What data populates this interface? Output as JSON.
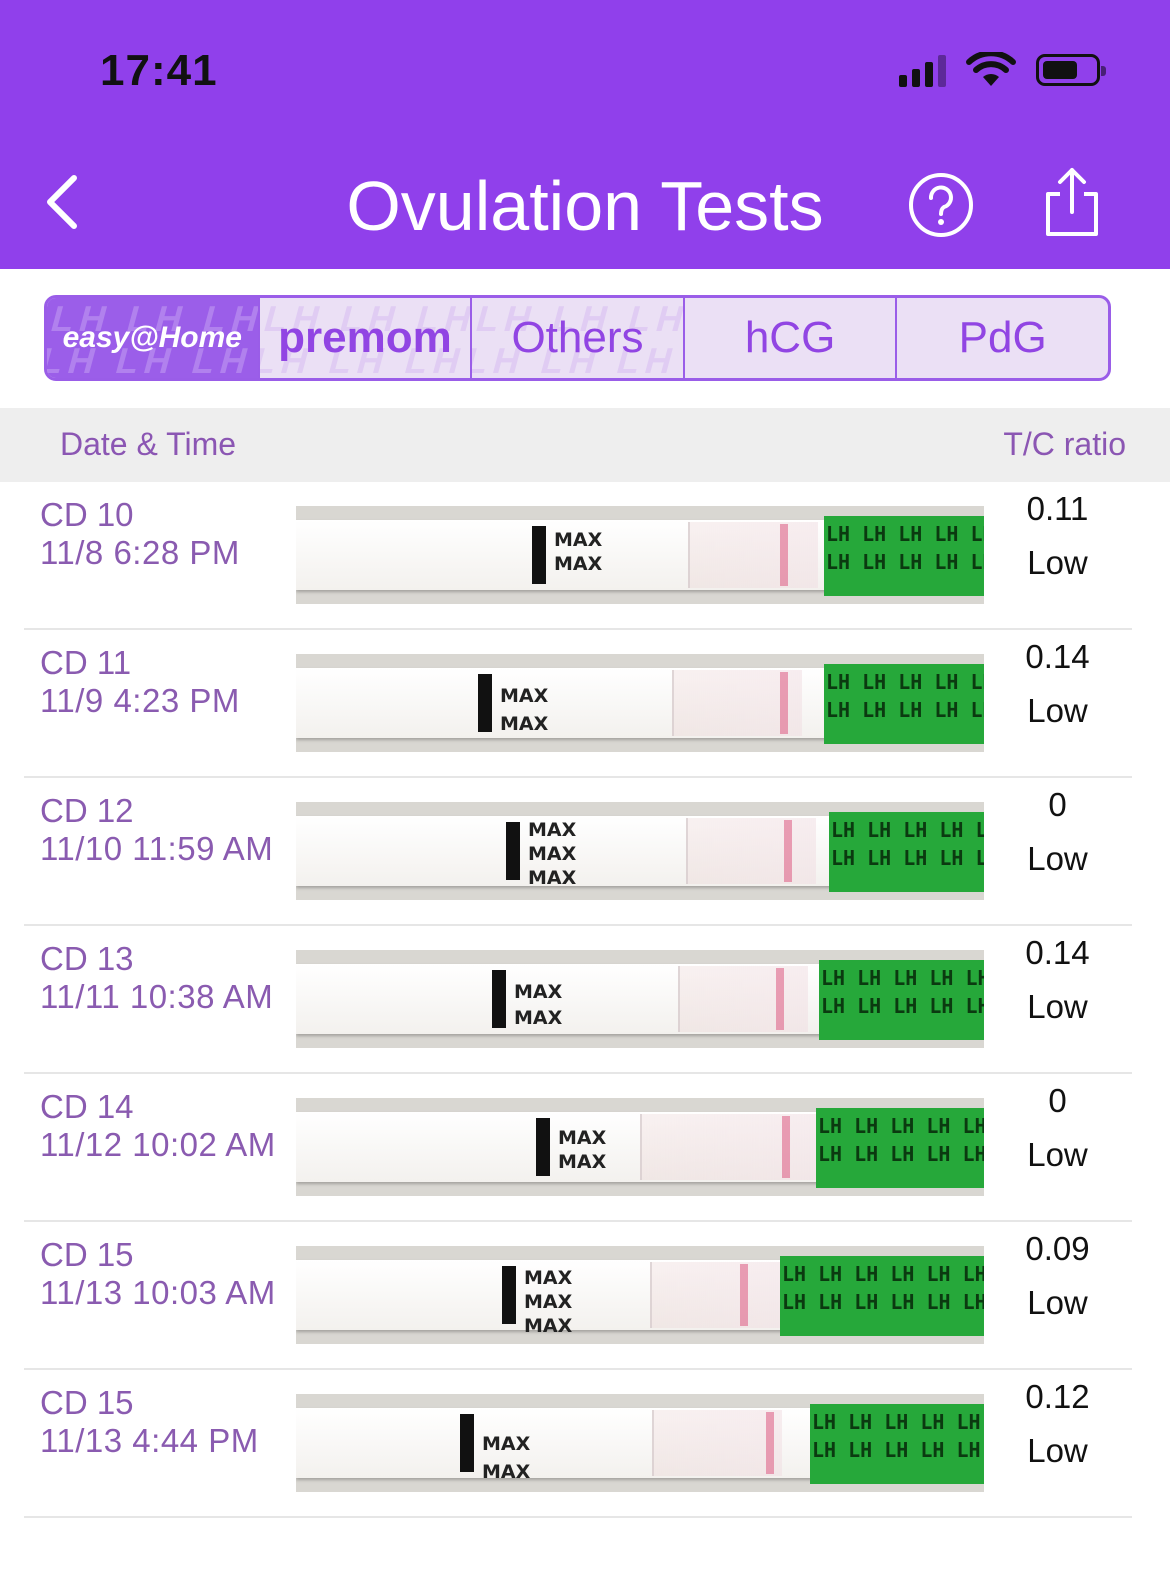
{
  "status_bar": {
    "time": "17:41"
  },
  "header": {
    "title": "Ovulation Tests"
  },
  "tabs": [
    {
      "label": "easy@Home",
      "active": true
    },
    {
      "label": "premom",
      "active": false
    },
    {
      "label": "Others",
      "active": false
    },
    {
      "label": "hCG",
      "active": false
    },
    {
      "label": "PdG",
      "active": false
    }
  ],
  "columns": {
    "date": "Date & Time",
    "ratio": "T/C ratio"
  },
  "rows": [
    {
      "cd": "CD 10",
      "datetime": "11/8 6:28 PM",
      "ratio": "0.11",
      "level": "Low"
    },
    {
      "cd": "CD 11",
      "datetime": "11/9 4:23 PM",
      "ratio": "0.14",
      "level": "Low"
    },
    {
      "cd": "CD 12",
      "datetime": "11/10 11:59 AM",
      "ratio": "0",
      "level": "Low"
    },
    {
      "cd": "CD 13",
      "datetime": "11/11 10:38 AM",
      "ratio": "0.14",
      "level": "Low"
    },
    {
      "cd": "CD 14",
      "datetime": "11/12 10:02 AM",
      "ratio": "0",
      "level": "Low"
    },
    {
      "cd": "CD 15",
      "datetime": "11/13 10:03 AM",
      "ratio": "0.09",
      "level": "Low"
    },
    {
      "cd": "CD 15",
      "datetime": "11/13 4:44 PM",
      "ratio": "0.12",
      "level": "Low"
    }
  ],
  "strip_text": {
    "max": "MAX",
    "lh": "LH LH LH LH LH LH"
  },
  "colors": {
    "header": "#9040eb",
    "accent_text": "#8a5bb0",
    "tab_border": "#9a5de8",
    "strip_green": "#26a83a"
  },
  "icons": {
    "back": "chevron-left-icon",
    "help": "question-circle-icon",
    "share": "share-icon",
    "signal": "cellular-signal-icon",
    "wifi": "wifi-icon",
    "battery": "battery-icon"
  }
}
